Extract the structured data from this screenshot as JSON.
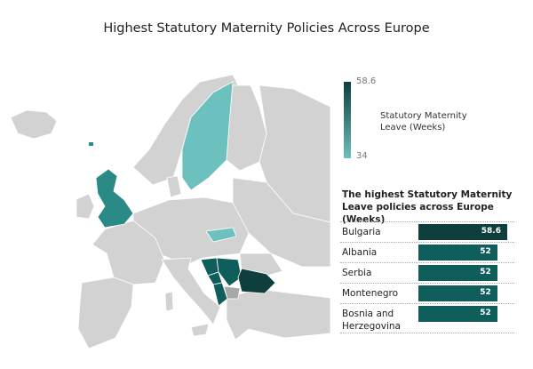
{
  "title": "Highest Statutory Maternity Policies Across Europe",
  "colors": {
    "land": "#d2d2d2",
    "max": "#0e3f3d",
    "mid": "#0f5e5b",
    "min": "#6cc0bd",
    "uk": "#2a8a85"
  },
  "legend": {
    "max": "58.6",
    "min": "34",
    "title_line1": "Statutory Maternity",
    "title_line2": "Leave (Weeks)"
  },
  "chart_data": {
    "type": "bar",
    "title": "The highest Statutory Maternity Leave policies across Europe (Weeks)",
    "categories": [
      "Bulgaria",
      "Albania",
      "Serbia",
      "Montenegro",
      "Bosnia and Herzegovina"
    ],
    "values": [
      58.6,
      52,
      52,
      52,
      52
    ],
    "value_labels": [
      "58.6",
      "52",
      "52",
      "52",
      "52"
    ],
    "xlim": [
      0,
      58.6
    ]
  },
  "table": {
    "title_line1": "The highest Statutory Maternity",
    "title_line2": "Leave policies across Europe (Weeks)"
  }
}
